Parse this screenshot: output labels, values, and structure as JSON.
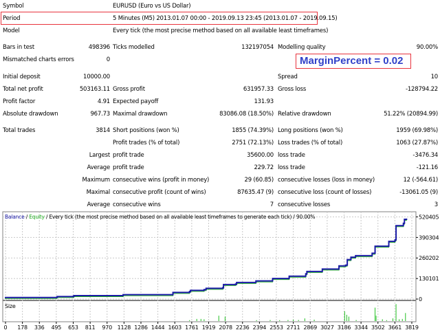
{
  "header": {
    "symbol_label": "Symbol",
    "symbol_value": "EURUSD (Euro vs US Dollar)",
    "period_label": "Period",
    "period_value": "5 Minutes (M5) 2013.01.07 00:00 - 2019.09.13 23:45 (2013.01.07 - 2019.09.15)",
    "model_label": "Model",
    "model_value": "Every tick (the most precise method based on all available least timeframes)"
  },
  "annotation": "MarginPercent = 0.02",
  "stats": [
    {
      "l1": "Bars in test",
      "v1": "498396",
      "l2": "Ticks modelled",
      "v2": "132197054",
      "l3": "Modelling quality",
      "v3": "90.00%"
    },
    {
      "l1": "Mismatched charts errors",
      "v1": "0",
      "l2": "",
      "v2": "",
      "l3": "",
      "v3": ""
    },
    {
      "l1": "Initial deposit",
      "v1": "10000.00",
      "l2": "",
      "v2": "",
      "l3": "Spread",
      "v3": "10"
    },
    {
      "l1": "Total net profit",
      "v1": "503163.11",
      "l2": "Gross profit",
      "v2": "631957.33",
      "l3": "Gross loss",
      "v3": "-128794.22"
    },
    {
      "l1": "Profit factor",
      "v1": "4.91",
      "l2": "Expected payoff",
      "v2": "131.93",
      "l3": "",
      "v3": ""
    },
    {
      "l1": "Absolute drawdown",
      "v1": "967.73",
      "l2": "Maximal drawdown",
      "v2": "83086.08 (18.50%)",
      "l3": "Relative drawdown",
      "v3": "51.22% (20894.99)"
    },
    {
      "l1": "Total trades",
      "v1": "3814",
      "l2": "Short positions (won %)",
      "v2": "1855 (74.39%)",
      "l3": "Long positions (won %)",
      "v3": "1959 (69.98%)"
    },
    {
      "l1": "",
      "v1": "",
      "l2": "Profit trades (% of total)",
      "v2": "2751 (72.13%)",
      "l3": "Loss trades (% of total)",
      "v3": "1063 (27.87%)"
    },
    {
      "l1": "",
      "v1": "Largest",
      "l2": "profit trade",
      "v2": "35600.00",
      "l3": "loss trade",
      "v3": "-3476.34"
    },
    {
      "l1": "",
      "v1": "Average",
      "l2": "profit trade",
      "v2": "229.72",
      "l3": "loss trade",
      "v3": "-121.16"
    },
    {
      "l1": "",
      "v1": "Maximum",
      "l2": "consecutive wins (profit in money)",
      "v2": "29 (60.85)",
      "l3": "consecutive losses (loss in money)",
      "v3": "12 (-564.61)"
    },
    {
      "l1": "",
      "v1": "Maximal",
      "l2": "consecutive profit (count of wins)",
      "v2": "87635.47 (9)",
      "l3": "consecutive loss (count of losses)",
      "v3": "-13061.05 (9)"
    },
    {
      "l1": "",
      "v1": "Average",
      "l2": "consecutive wins",
      "v2": "7",
      "l3": "consecutive losses",
      "v3": "3"
    }
  ],
  "chart_data": {
    "type": "line",
    "legend": {
      "balance": "Balance",
      "sep1": " / ",
      "equity": "Equity",
      "rest": " / Every tick (the most precise method based on all available least timeframes to generate each tick) / 90.00%"
    },
    "colors": {
      "balance": "#1a1aa6",
      "equity": "#22b022",
      "size": "#22c022",
      "grid": "#c8c8c8"
    },
    "y_ticks": [
      "520405",
      "390304",
      "260202",
      "130101",
      "0"
    ],
    "y_values": [
      520405,
      390304,
      260202,
      130101,
      0
    ],
    "ylim": [
      0,
      540000
    ],
    "x_ticks": [
      "0",
      "178",
      "336",
      "495",
      "653",
      "811",
      "970",
      "1128",
      "1286",
      "1444",
      "1603",
      "1761",
      "1919",
      "2078",
      "2236",
      "2394",
      "2553",
      "2711",
      "2869",
      "3027",
      "3186",
      "3344",
      "3502",
      "3661",
      "3819"
    ],
    "xlim": [
      0,
      3900
    ],
    "balance": [
      [
        0,
        10000
      ],
      [
        495,
        12000
      ],
      [
        500,
        16000
      ],
      [
        653,
        18000
      ],
      [
        660,
        22000
      ],
      [
        1128,
        28000
      ],
      [
        1603,
        42000
      ],
      [
        1761,
        48000
      ],
      [
        1770,
        55000
      ],
      [
        1900,
        60000
      ],
      [
        1919,
        68000
      ],
      [
        2078,
        72000
      ],
      [
        2085,
        92000
      ],
      [
        2200,
        95000
      ],
      [
        2210,
        105000
      ],
      [
        2394,
        115000
      ],
      [
        2553,
        130000
      ],
      [
        2711,
        145000
      ],
      [
        2869,
        160000
      ],
      [
        2880,
        175000
      ],
      [
        3027,
        190000
      ],
      [
        3186,
        210000
      ],
      [
        3250,
        215000
      ],
      [
        3265,
        250000
      ],
      [
        3300,
        265000
      ],
      [
        3344,
        275000
      ],
      [
        3502,
        290000
      ],
      [
        3520,
        290000
      ],
      [
        3530,
        335000
      ],
      [
        3661,
        365000
      ],
      [
        3720,
        375000
      ],
      [
        3730,
        465000
      ],
      [
        3800,
        480000
      ],
      [
        3810,
        505000
      ],
      [
        3830,
        510000
      ]
    ],
    "size_label": "Size",
    "size_bars": [
      [
        1761,
        0.05
      ],
      [
        1830,
        0.12
      ],
      [
        1870,
        0.12
      ],
      [
        1900,
        0.1
      ],
      [
        2040,
        0.3
      ],
      [
        2100,
        0.25
      ],
      [
        2400,
        0.05
      ],
      [
        2530,
        0.06
      ],
      [
        2620,
        0.05
      ],
      [
        2700,
        0.06
      ],
      [
        2750,
        0.08
      ],
      [
        2800,
        0.06
      ],
      [
        2860,
        0.15
      ],
      [
        2950,
        0.08
      ],
      [
        3240,
        0.55
      ],
      [
        3260,
        0.35
      ],
      [
        3280,
        0.25
      ],
      [
        3350,
        0.06
      ],
      [
        3530,
        0.75
      ],
      [
        3540,
        0.3
      ],
      [
        3600,
        0.1
      ],
      [
        3640,
        0.05
      ],
      [
        3700,
        0.15
      ],
      [
        3730,
        0.95
      ],
      [
        3760,
        0.1
      ],
      [
        3790,
        0.12
      ],
      [
        3820,
        0.45
      ]
    ],
    "size_max_note": "relative heights"
  }
}
